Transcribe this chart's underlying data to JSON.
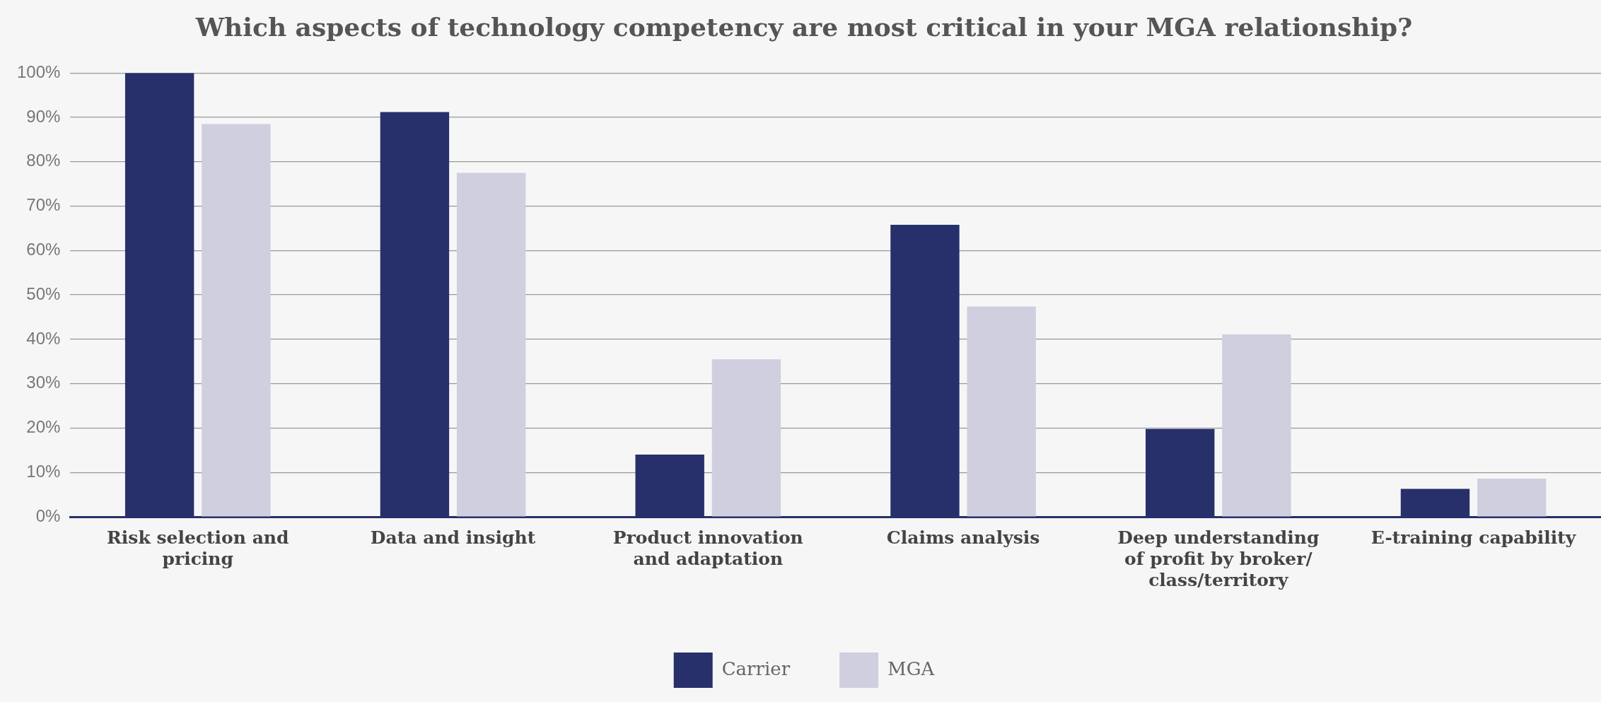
{
  "chart_data": {
    "type": "bar",
    "title": "Which aspects of technology competency are most critical in your MGA relationship?",
    "categories": [
      "Risk selection and pricing",
      "Data and insight",
      "Product innovation and adaptation",
      "Claims analysis",
      "Deep understanding of profit by broker/class/territory",
      "E-training capability"
    ],
    "series": [
      {
        "name": "Carrier",
        "color": "#27306b",
        "values": [
          100,
          91.2,
          14.0,
          65.8,
          19.8,
          6.3
        ]
      },
      {
        "name": "MGA",
        "color": "#d0cfe0",
        "values": [
          88.5,
          77.5,
          35.5,
          47.4,
          41.1,
          8.6
        ]
      }
    ],
    "ylim": [
      0,
      100
    ],
    "yticks": [
      {
        "value": 0,
        "label": "0%"
      },
      {
        "value": 10,
        "label": "10%"
      },
      {
        "value": 20,
        "label": "20%"
      },
      {
        "value": 30,
        "label": "30%"
      },
      {
        "value": 40,
        "label": "40%"
      },
      {
        "value": 50,
        "label": "50%"
      },
      {
        "value": 60,
        "label": "60%"
      },
      {
        "value": 70,
        "label": "70%"
      },
      {
        "value": 80,
        "label": "80%"
      },
      {
        "value": 90,
        "label": "90%"
      },
      {
        "value": 100,
        "label": "100%"
      }
    ],
    "grid": "y",
    "legend": "bottom"
  }
}
